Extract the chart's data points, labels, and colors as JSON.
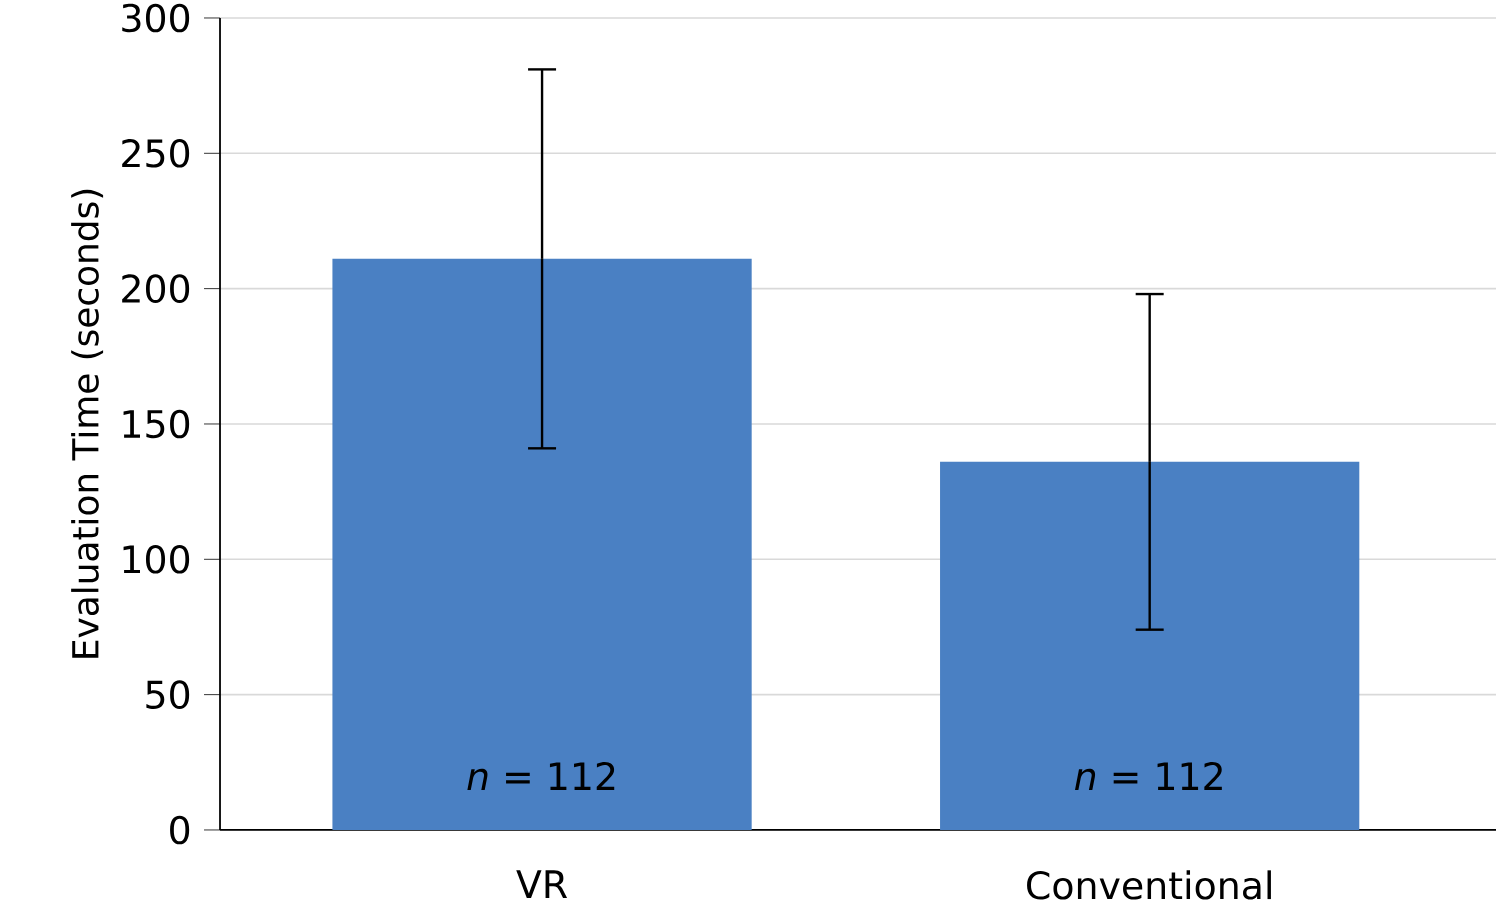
{
  "chart_data": {
    "type": "bar",
    "ylabel": "Evaluation Time (seconds)",
    "categories": [
      "VR",
      "Conventional"
    ],
    "values": [
      211,
      136
    ],
    "errors": [
      70,
      62
    ],
    "color": "#4a80c3",
    "ylim": [
      0,
      300
    ],
    "yticks": [
      0,
      50,
      100,
      150,
      200,
      250,
      300
    ],
    "grid": "y",
    "annotations": [
      "*n* = 112",
      "*n* = 112"
    ]
  }
}
